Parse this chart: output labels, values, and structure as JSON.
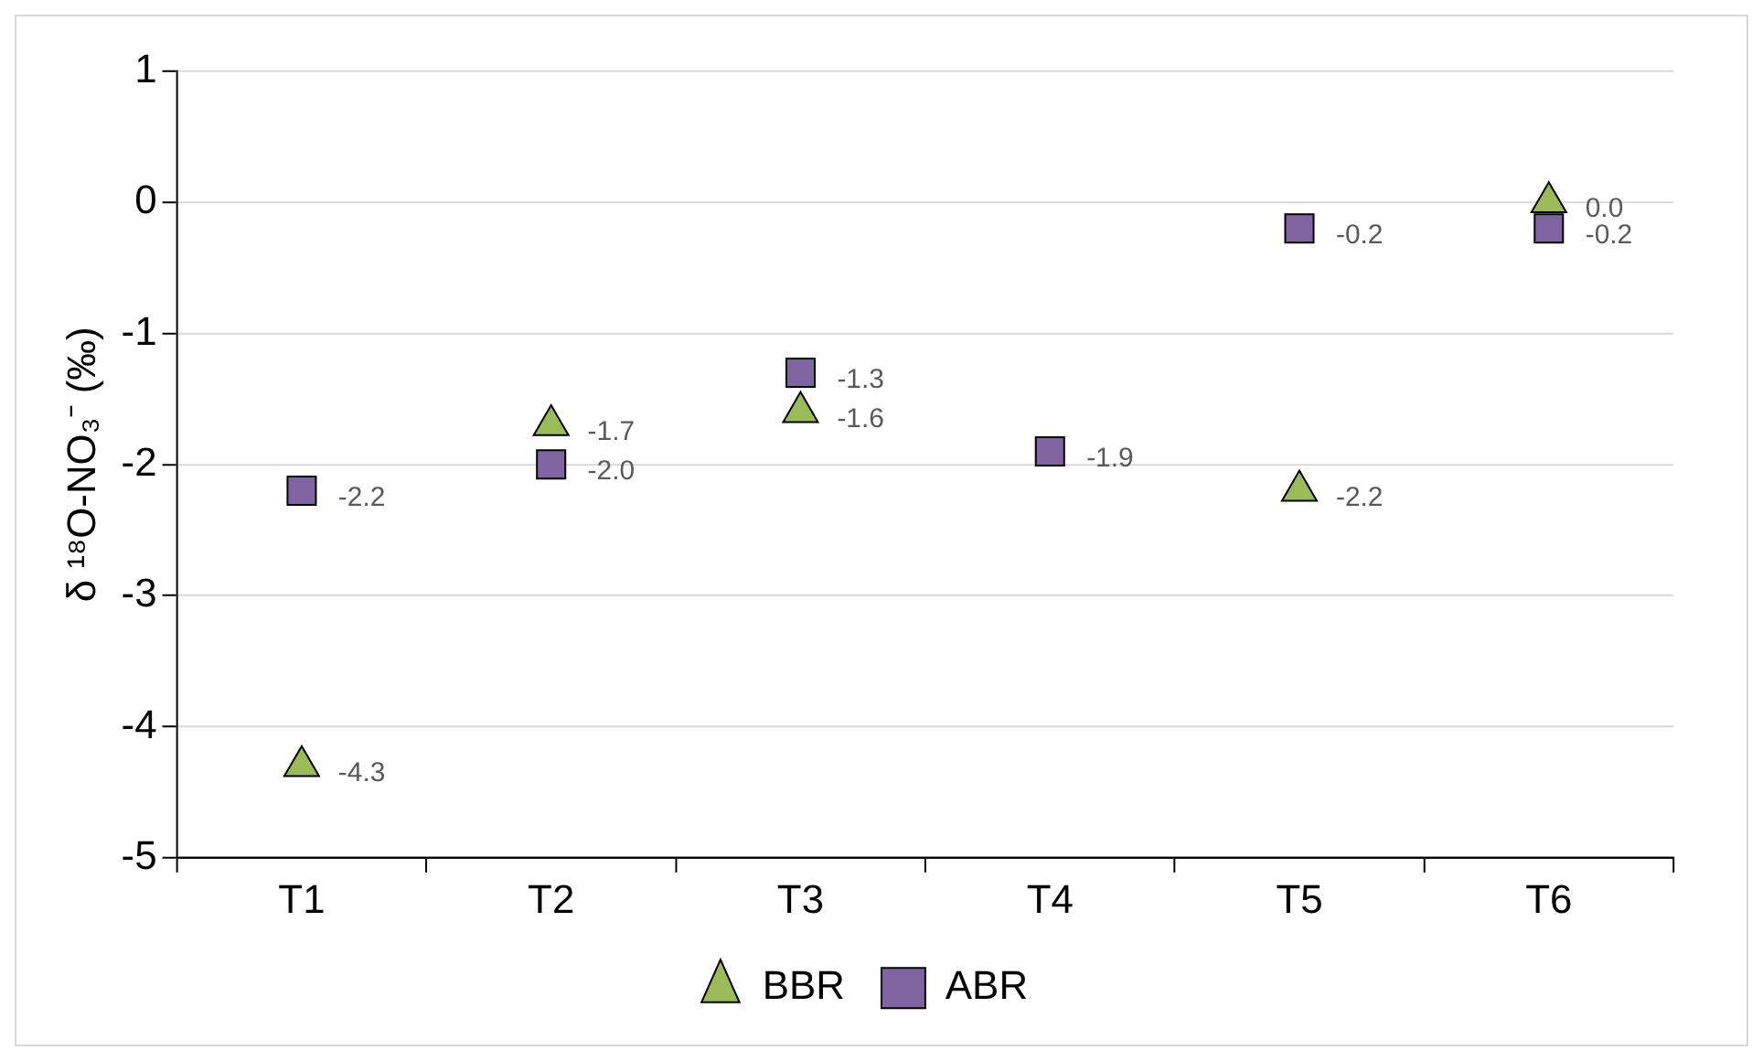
{
  "chart_data": {
    "type": "scatter",
    "ylabel": "δ ¹⁸O-NO₃⁻ (‰)",
    "categories": [
      "T1",
      "T2",
      "T3",
      "T4",
      "T5",
      "T6"
    ],
    "series": [
      {
        "name": "BBR",
        "color": "#9bbb59",
        "marker": "triangle",
        "values": [
          -4.3,
          -1.7,
          -1.6,
          null,
          -2.2,
          0.0
        ],
        "value_labels": [
          "-4.3",
          "-1.7",
          "-1.6",
          null,
          "-2.2",
          "0.0"
        ]
      },
      {
        "name": "ABR",
        "color": "#8064a2",
        "marker": "square",
        "values": [
          -2.2,
          -2.0,
          -1.3,
          -1.9,
          -0.2,
          -0.2
        ],
        "value_labels": [
          "-2.2",
          "-2.0",
          "-1.3",
          "-1.9",
          "-0.2",
          "-0.2"
        ]
      }
    ],
    "ylim": [
      -5,
      1
    ],
    "yticks": [
      -5,
      -4,
      -3,
      -2,
      -1,
      0,
      1
    ],
    "grid": "y",
    "legend": "bottom"
  }
}
